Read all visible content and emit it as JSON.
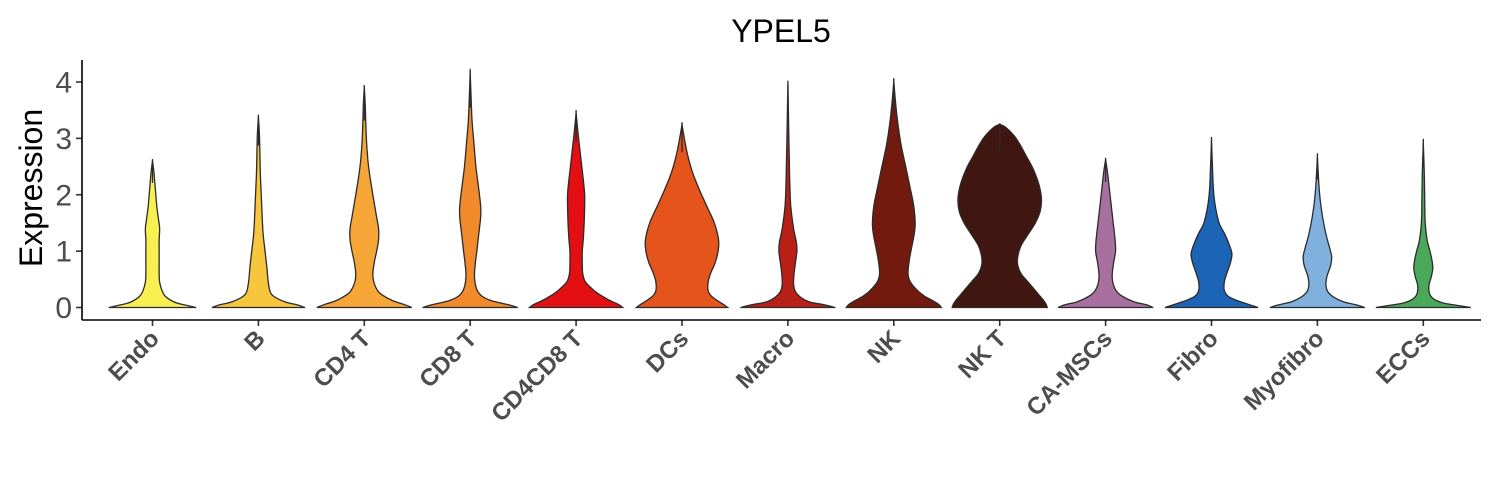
{
  "chart_data": {
    "type": "violin",
    "title": "YPEL5",
    "xlabel": "",
    "ylabel": "Expression",
    "ylim": [
      -0.2,
      4.35
    ],
    "yticks": [
      0,
      1,
      2,
      3,
      4
    ],
    "grid": false,
    "legend": "none",
    "categories": [
      "Endo",
      "B",
      "CD4 T",
      "CD8 T",
      "CD4CD8 T",
      "DCs",
      "Macro",
      "NK",
      "NK T",
      "CA-MSCs",
      "Fibro",
      "Myofibro",
      "ECCs"
    ],
    "series": [
      {
        "name": "Endo",
        "color": "#f8f050",
        "max": 2.6,
        "profile": [
          [
            0,
            0.92
          ],
          [
            0.05,
            0.65
          ],
          [
            0.1,
            0.45
          ],
          [
            0.2,
            0.27
          ],
          [
            0.3,
            0.2
          ],
          [
            0.45,
            0.15
          ],
          [
            0.6,
            0.14
          ],
          [
            0.8,
            0.14
          ],
          [
            1.0,
            0.14
          ],
          [
            1.2,
            0.14
          ],
          [
            1.4,
            0.15
          ],
          [
            1.6,
            0.12
          ],
          [
            1.8,
            0.09
          ],
          [
            2.0,
            0.07
          ],
          [
            2.2,
            0.05
          ],
          [
            2.4,
            0.03
          ],
          [
            2.6,
            0.0
          ]
        ]
      },
      {
        "name": "B",
        "color": "#f8c63c",
        "max": 3.38,
        "profile": [
          [
            0,
            0.98
          ],
          [
            0.05,
            0.8
          ],
          [
            0.1,
            0.56
          ],
          [
            0.2,
            0.32
          ],
          [
            0.3,
            0.24
          ],
          [
            0.5,
            0.2
          ],
          [
            0.7,
            0.18
          ],
          [
            1.0,
            0.14
          ],
          [
            1.3,
            0.1
          ],
          [
            1.6,
            0.08
          ],
          [
            2.0,
            0.06
          ],
          [
            2.4,
            0.04
          ],
          [
            2.8,
            0.03
          ],
          [
            3.1,
            0.02
          ],
          [
            3.38,
            0.0
          ]
        ]
      },
      {
        "name": "CD4 T",
        "color": "#f5a637",
        "max": 3.9,
        "profile": [
          [
            0,
            1.0
          ],
          [
            0.05,
            0.85
          ],
          [
            0.12,
            0.6
          ],
          [
            0.22,
            0.38
          ],
          [
            0.3,
            0.28
          ],
          [
            0.45,
            0.2
          ],
          [
            0.6,
            0.18
          ],
          [
            0.8,
            0.21
          ],
          [
            1.0,
            0.26
          ],
          [
            1.2,
            0.3
          ],
          [
            1.4,
            0.3
          ],
          [
            1.6,
            0.26
          ],
          [
            1.8,
            0.22
          ],
          [
            2.1,
            0.16
          ],
          [
            2.5,
            0.09
          ],
          [
            2.9,
            0.05
          ],
          [
            3.3,
            0.03
          ],
          [
            3.6,
            0.02
          ],
          [
            3.9,
            0.0
          ]
        ]
      },
      {
        "name": "CD8 T",
        "color": "#f08a2a",
        "max": 4.17,
        "profile": [
          [
            0,
            1.0
          ],
          [
            0.05,
            0.8
          ],
          [
            0.12,
            0.45
          ],
          [
            0.2,
            0.25
          ],
          [
            0.3,
            0.15
          ],
          [
            0.45,
            0.1
          ],
          [
            0.6,
            0.09
          ],
          [
            0.8,
            0.11
          ],
          [
            1.0,
            0.14
          ],
          [
            1.3,
            0.18
          ],
          [
            1.6,
            0.22
          ],
          [
            1.8,
            0.22
          ],
          [
            2.1,
            0.18
          ],
          [
            2.5,
            0.12
          ],
          [
            2.9,
            0.08
          ],
          [
            3.3,
            0.04
          ],
          [
            3.7,
            0.02
          ],
          [
            4.17,
            0.0
          ]
        ]
      },
      {
        "name": "CD4CD8 T",
        "color": "#e30f12",
        "max": 3.45,
        "profile": [
          [
            0,
            0.98
          ],
          [
            0.05,
            0.9
          ],
          [
            0.12,
            0.72
          ],
          [
            0.2,
            0.55
          ],
          [
            0.3,
            0.38
          ],
          [
            0.45,
            0.2
          ],
          [
            0.6,
            0.14
          ],
          [
            0.8,
            0.13
          ],
          [
            1.0,
            0.13
          ],
          [
            1.2,
            0.15
          ],
          [
            1.5,
            0.17
          ],
          [
            1.8,
            0.18
          ],
          [
            2.0,
            0.18
          ],
          [
            2.2,
            0.16
          ],
          [
            2.5,
            0.12
          ],
          [
            2.8,
            0.08
          ],
          [
            3.1,
            0.04
          ],
          [
            3.45,
            0.0
          ]
        ]
      },
      {
        "name": "DCs",
        "color": "#e4541b",
        "max": 3.24,
        "profile": [
          [
            0,
            0.96
          ],
          [
            0.05,
            0.88
          ],
          [
            0.12,
            0.75
          ],
          [
            0.2,
            0.62
          ],
          [
            0.3,
            0.55
          ],
          [
            0.45,
            0.55
          ],
          [
            0.6,
            0.6
          ],
          [
            0.8,
            0.7
          ],
          [
            1.0,
            0.76
          ],
          [
            1.2,
            0.77
          ],
          [
            1.5,
            0.68
          ],
          [
            1.8,
            0.52
          ],
          [
            2.1,
            0.36
          ],
          [
            2.4,
            0.22
          ],
          [
            2.7,
            0.12
          ],
          [
            2.95,
            0.06
          ],
          [
            3.24,
            0.0
          ]
        ]
      },
      {
        "name": "Macro",
        "color": "#b81f16",
        "max": 3.96,
        "profile": [
          [
            0,
            1.0
          ],
          [
            0.05,
            0.75
          ],
          [
            0.1,
            0.45
          ],
          [
            0.18,
            0.27
          ],
          [
            0.28,
            0.16
          ],
          [
            0.4,
            0.12
          ],
          [
            0.6,
            0.13
          ],
          [
            0.8,
            0.16
          ],
          [
            1.0,
            0.19
          ],
          [
            1.15,
            0.18
          ],
          [
            1.4,
            0.12
          ],
          [
            1.8,
            0.06
          ],
          [
            2.2,
            0.04
          ],
          [
            2.6,
            0.03
          ],
          [
            3.0,
            0.02
          ],
          [
            3.5,
            0.01
          ],
          [
            3.96,
            0.0
          ]
        ]
      },
      {
        "name": "NK",
        "color": "#731a0e",
        "max": 4.02,
        "profile": [
          [
            0,
            1.0
          ],
          [
            0.05,
            0.95
          ],
          [
            0.12,
            0.82
          ],
          [
            0.2,
            0.65
          ],
          [
            0.3,
            0.5
          ],
          [
            0.45,
            0.35
          ],
          [
            0.6,
            0.3
          ],
          [
            0.8,
            0.32
          ],
          [
            1.0,
            0.36
          ],
          [
            1.3,
            0.43
          ],
          [
            1.5,
            0.45
          ],
          [
            1.8,
            0.42
          ],
          [
            2.1,
            0.35
          ],
          [
            2.5,
            0.25
          ],
          [
            2.9,
            0.15
          ],
          [
            3.3,
            0.08
          ],
          [
            3.7,
            0.03
          ],
          [
            4.02,
            0.0
          ]
        ]
      },
      {
        "name": "NK T",
        "color": "#401610",
        "max": 3.25,
        "profile": [
          [
            0,
            1.0
          ],
          [
            0.05,
            0.98
          ],
          [
            0.12,
            0.93
          ],
          [
            0.2,
            0.85
          ],
          [
            0.3,
            0.75
          ],
          [
            0.45,
            0.6
          ],
          [
            0.6,
            0.45
          ],
          [
            0.75,
            0.38
          ],
          [
            0.9,
            0.38
          ],
          [
            1.1,
            0.45
          ],
          [
            1.3,
            0.6
          ],
          [
            1.5,
            0.75
          ],
          [
            1.7,
            0.85
          ],
          [
            1.9,
            0.88
          ],
          [
            2.1,
            0.85
          ],
          [
            2.3,
            0.78
          ],
          [
            2.5,
            0.68
          ],
          [
            2.7,
            0.55
          ],
          [
            2.9,
            0.42
          ],
          [
            3.05,
            0.3
          ],
          [
            3.2,
            0.12
          ],
          [
            3.25,
            0.0
          ]
        ]
      },
      {
        "name": "CA-MSCs",
        "color": "#a8709f",
        "max": 2.62,
        "profile": [
          [
            0,
            1.0
          ],
          [
            0.05,
            0.85
          ],
          [
            0.1,
            0.6
          ],
          [
            0.2,
            0.35
          ],
          [
            0.3,
            0.22
          ],
          [
            0.45,
            0.15
          ],
          [
            0.6,
            0.14
          ],
          [
            0.8,
            0.17
          ],
          [
            1.0,
            0.21
          ],
          [
            1.2,
            0.2
          ],
          [
            1.5,
            0.16
          ],
          [
            1.8,
            0.12
          ],
          [
            2.1,
            0.08
          ],
          [
            2.4,
            0.04
          ],
          [
            2.62,
            0.0
          ]
        ]
      },
      {
        "name": "Fibro",
        "color": "#1c64b5",
        "max": 2.96,
        "profile": [
          [
            0,
            0.98
          ],
          [
            0.05,
            0.8
          ],
          [
            0.12,
            0.55
          ],
          [
            0.2,
            0.35
          ],
          [
            0.3,
            0.27
          ],
          [
            0.45,
            0.27
          ],
          [
            0.6,
            0.32
          ],
          [
            0.8,
            0.4
          ],
          [
            0.95,
            0.43
          ],
          [
            1.1,
            0.38
          ],
          [
            1.3,
            0.28
          ],
          [
            1.5,
            0.16
          ],
          [
            1.8,
            0.08
          ],
          [
            2.1,
            0.04
          ],
          [
            2.5,
            0.02
          ],
          [
            2.96,
            0.0
          ]
        ]
      },
      {
        "name": "Myofibro",
        "color": "#7fb0de",
        "max": 2.67,
        "profile": [
          [
            0,
            1.0
          ],
          [
            0.05,
            0.8
          ],
          [
            0.1,
            0.55
          ],
          [
            0.18,
            0.35
          ],
          [
            0.28,
            0.22
          ],
          [
            0.4,
            0.18
          ],
          [
            0.55,
            0.2
          ],
          [
            0.75,
            0.28
          ],
          [
            0.9,
            0.3
          ],
          [
            1.05,
            0.26
          ],
          [
            1.3,
            0.18
          ],
          [
            1.6,
            0.11
          ],
          [
            1.9,
            0.06
          ],
          [
            2.2,
            0.03
          ],
          [
            2.67,
            0.0
          ]
        ]
      },
      {
        "name": "ECCs",
        "color": "#4aa85a",
        "max": 2.92,
        "profile": [
          [
            0,
            1.0
          ],
          [
            0.04,
            0.7
          ],
          [
            0.08,
            0.42
          ],
          [
            0.15,
            0.22
          ],
          [
            0.25,
            0.13
          ],
          [
            0.4,
            0.12
          ],
          [
            0.55,
            0.17
          ],
          [
            0.7,
            0.2
          ],
          [
            0.85,
            0.18
          ],
          [
            1.0,
            0.14
          ],
          [
            1.2,
            0.08
          ],
          [
            1.5,
            0.04
          ],
          [
            1.9,
            0.03
          ],
          [
            2.4,
            0.02
          ],
          [
            2.92,
            0.0
          ]
        ]
      }
    ]
  }
}
